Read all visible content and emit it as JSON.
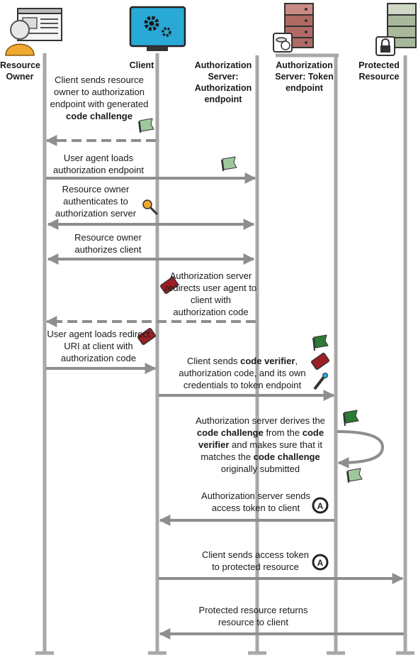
{
  "actors": {
    "resource_owner": "Resource Owner",
    "client": "Client",
    "auth_endpoint": "Authorization Server: Authorization endpoint",
    "token_endpoint": "Authorization Server: Token endpoint",
    "protected_resource": "Protected Resource"
  },
  "steps": {
    "s1": {
      "a": "Client sends resource owner to authorization endpoint with generated",
      "b": "code challenge"
    },
    "s2": "User agent loads authorization endpoint",
    "s3": "Resource owner authenticates to authorization server",
    "s4": "Resource owner authorizes client",
    "s5": "Authorization server redirects user agent to client with authorization code",
    "s6": "User agent loads redirect URI at client with authorization code",
    "s7": {
      "a": "Client sends",
      "b": "code verifier",
      "c": ", authorization code, and its own credentials to token endpoint"
    },
    "s8": {
      "a": "Authorization server derives the",
      "b": "code challenge",
      "c": " from the",
      "d": "code verifier",
      "e": " and makes sure that it matches the",
      "f": "code challenge",
      "g": " originally submitted"
    },
    "s9": "Authorization server sends access token to client",
    "s10": "Client sends access token to protected resource",
    "s11": "Protected resource returns resource to client"
  },
  "icons": {
    "token_letter": "A"
  },
  "colors": {
    "lifeline": "#a8a8a8",
    "arrow": "#8e8e8e",
    "flag_green": "#3f9a4a",
    "ticket_red": "#9b1f24",
    "server_red": "#b06a64",
    "server_green": "#a8b89a"
  }
}
